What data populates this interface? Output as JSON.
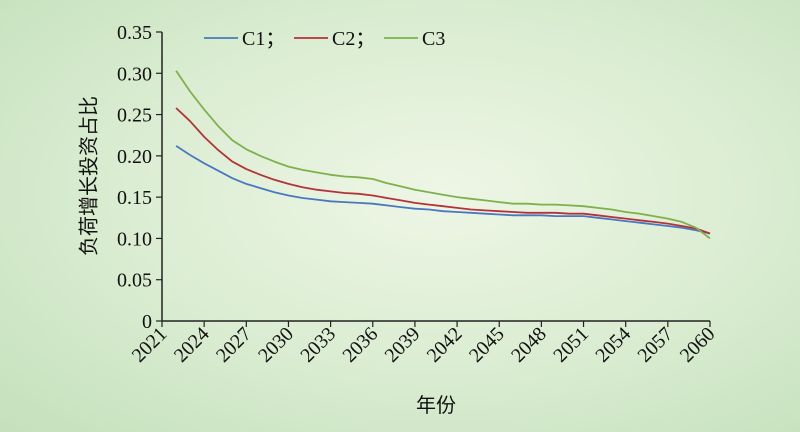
{
  "chart_data": {
    "type": "line",
    "xlabel": "年份",
    "ylabel": "负荷增长投资占比",
    "xlim": [
      2021,
      2060
    ],
    "ylim": [
      0,
      0.35
    ],
    "x_ticks": [
      "2021",
      "2024",
      "2027",
      "2030",
      "2033",
      "2036",
      "2039",
      "2042",
      "2045",
      "2048",
      "2051",
      "2054",
      "2057",
      "2060"
    ],
    "y_ticks": [
      "0",
      "0.05",
      "0.10",
      "0.15",
      "0.20",
      "0.25",
      "0.30",
      "0.35"
    ],
    "grid": false,
    "legend_position": "top-left",
    "series": [
      {
        "name": "C1；",
        "color": "#4a78c0",
        "x": [
          2022,
          2023,
          2024,
          2025,
          2026,
          2027,
          2028,
          2029,
          2030,
          2031,
          2032,
          2033,
          2034,
          2035,
          2036,
          2037,
          2038,
          2039,
          2040,
          2041,
          2042,
          2043,
          2044,
          2045,
          2046,
          2047,
          2048,
          2049,
          2050,
          2051,
          2052,
          2053,
          2054,
          2055,
          2056,
          2057,
          2058,
          2059,
          2060
        ],
        "values": [
          0.212,
          0.201,
          0.191,
          0.182,
          0.173,
          0.166,
          0.161,
          0.156,
          0.152,
          0.149,
          0.147,
          0.145,
          0.144,
          0.143,
          0.142,
          0.14,
          0.138,
          0.136,
          0.135,
          0.133,
          0.132,
          0.131,
          0.13,
          0.129,
          0.128,
          0.128,
          0.128,
          0.127,
          0.127,
          0.127,
          0.125,
          0.123,
          0.121,
          0.119,
          0.117,
          0.115,
          0.113,
          0.11,
          0.106
        ]
      },
      {
        "name": "C2；",
        "color": "#b5323a",
        "x": [
          2022,
          2023,
          2024,
          2025,
          2026,
          2027,
          2028,
          2029,
          2030,
          2031,
          2032,
          2033,
          2034,
          2035,
          2036,
          2037,
          2038,
          2039,
          2040,
          2041,
          2042,
          2043,
          2044,
          2045,
          2046,
          2047,
          2048,
          2049,
          2050,
          2051,
          2052,
          2053,
          2054,
          2055,
          2056,
          2057,
          2058,
          2059,
          2060
        ],
        "values": [
          0.258,
          0.242,
          0.223,
          0.207,
          0.193,
          0.184,
          0.177,
          0.171,
          0.166,
          0.162,
          0.159,
          0.157,
          0.155,
          0.154,
          0.152,
          0.149,
          0.146,
          0.143,
          0.141,
          0.139,
          0.137,
          0.135,
          0.134,
          0.133,
          0.132,
          0.131,
          0.131,
          0.131,
          0.13,
          0.13,
          0.128,
          0.126,
          0.124,
          0.122,
          0.12,
          0.118,
          0.115,
          0.112,
          0.106
        ]
      },
      {
        "name": "C3",
        "color": "#7fb04c",
        "x": [
          2022,
          2023,
          2024,
          2025,
          2026,
          2027,
          2028,
          2029,
          2030,
          2031,
          2032,
          2033,
          2034,
          2035,
          2036,
          2037,
          2038,
          2039,
          2040,
          2041,
          2042,
          2043,
          2044,
          2045,
          2046,
          2047,
          2048,
          2049,
          2050,
          2051,
          2052,
          2053,
          2054,
          2055,
          2056,
          2057,
          2058,
          2059,
          2060
        ],
        "values": [
          0.303,
          0.278,
          0.256,
          0.236,
          0.219,
          0.208,
          0.2,
          0.193,
          0.187,
          0.183,
          0.18,
          0.177,
          0.175,
          0.174,
          0.172,
          0.167,
          0.163,
          0.159,
          0.156,
          0.153,
          0.15,
          0.148,
          0.146,
          0.144,
          0.142,
          0.142,
          0.141,
          0.141,
          0.14,
          0.139,
          0.137,
          0.135,
          0.132,
          0.13,
          0.127,
          0.124,
          0.12,
          0.113,
          0.1
        ]
      }
    ]
  }
}
